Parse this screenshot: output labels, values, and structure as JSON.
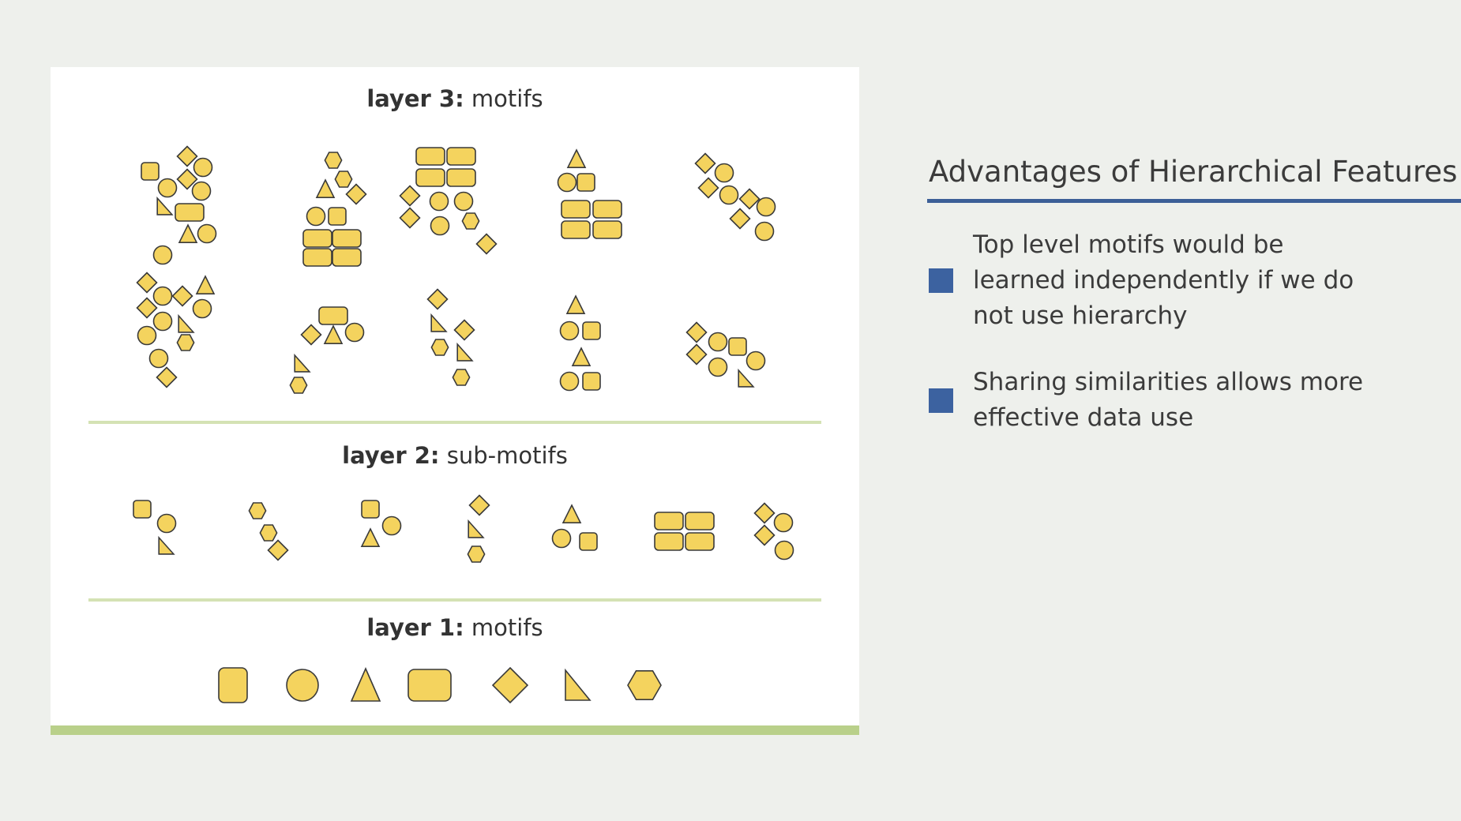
{
  "diagram": {
    "layer3": {
      "bold": "layer 3:",
      "rest": " motifs"
    },
    "layer2": {
      "bold": "layer 2:",
      "rest": " sub-motifs"
    },
    "layer1": {
      "bold": "layer 1:",
      "rest": " motifs"
    },
    "shape_fill": "#f4d35e",
    "shape_stroke": "#3a3a3a",
    "divider_color": "#d4e2b4",
    "base_bar_color": "#b9d08a",
    "primitives": [
      "rounded-square",
      "circle",
      "triangle",
      "wide-rounded-rect",
      "diamond",
      "right-triangle",
      "hexagon"
    ]
  },
  "side": {
    "title": "Advantages of Hierarchical Features",
    "accent": "#3c62a0",
    "bullets": [
      "Top level motifs would be learned independently if we do not use hierarchy",
      "Sharing similarities allows more effective data use"
    ]
  }
}
